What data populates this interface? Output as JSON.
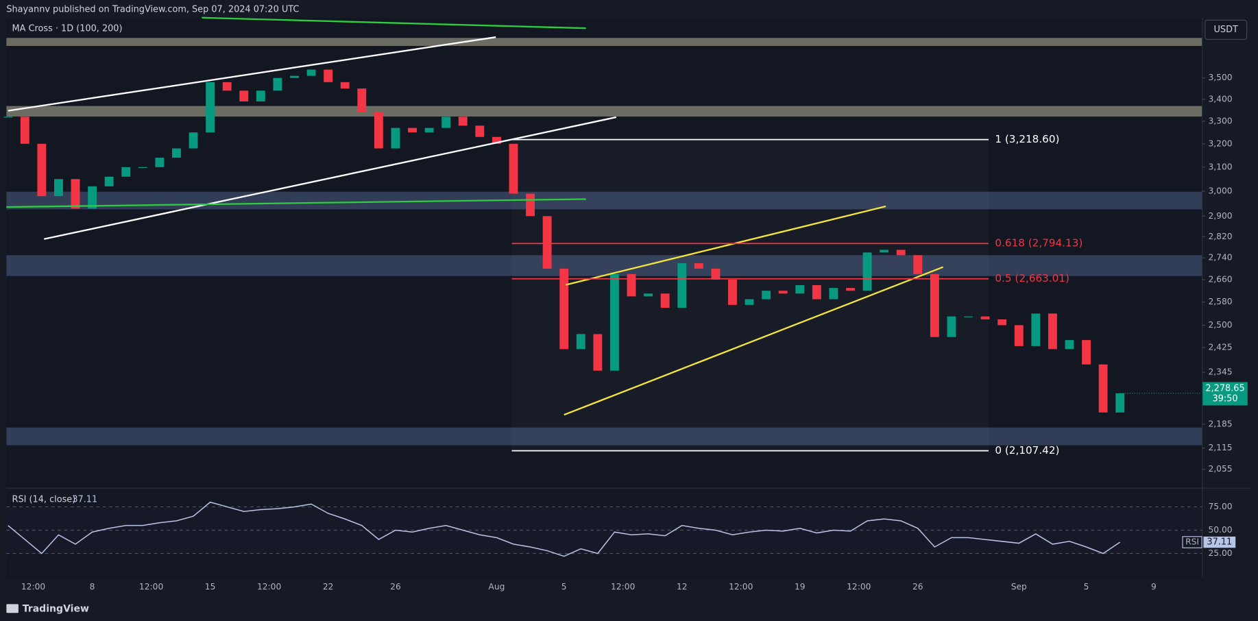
{
  "header": {
    "published": "Shayannv published on TradingView.com, Sep 07, 2024 07:20 UTC",
    "brand": "TradingView"
  },
  "chart_data": [
    {
      "type": "candlestick",
      "indicator": "MA Cross · 1D (100, 200)",
      "currency": "USDT",
      "values": [
        3320,
        3200,
        2980,
        3050,
        2930,
        3020,
        3060,
        3100,
        3100,
        3140,
        3180,
        3250,
        3480,
        3440,
        3390,
        3440,
        3500,
        3510,
        3540,
        3480,
        3450,
        3340,
        3180,
        3270,
        3250,
        3270,
        3320,
        3280,
        3230,
        3200,
        2990,
        2900,
        2700,
        2420,
        2470,
        2350,
        2680,
        2600,
        2610,
        2560,
        2720,
        2700,
        2660,
        2570,
        2590,
        2620,
        2610,
        2640,
        2590,
        2630,
        2620,
        2760,
        2770,
        2750,
        2680,
        2460,
        2530,
        2530,
        2520,
        2500,
        2430,
        2540,
        2420,
        2450,
        2370,
        2220,
        2278.65
      ],
      "color_up": "#089981",
      "color_down": "#f23645",
      "last_price_label": "2,278.65",
      "countdown": "39:50",
      "log_scale": true,
      "xlim": [
        0,
        70
      ],
      "ylim": [
        2006,
        3799
      ],
      "xticks": [
        {
          "value": 1.5,
          "label": "12:00"
        },
        {
          "value": 5,
          "label": "8"
        },
        {
          "value": 8.5,
          "label": "12:00"
        },
        {
          "value": 12,
          "label": "15"
        },
        {
          "value": 15.5,
          "label": "12:00"
        },
        {
          "value": 19,
          "label": "22"
        },
        {
          "value": 23,
          "label": "26"
        },
        {
          "value": 29,
          "label": "Aug"
        },
        {
          "value": 33,
          "label": "5"
        },
        {
          "value": 36.5,
          "label": "12:00"
        },
        {
          "value": 40,
          "label": "12"
        },
        {
          "value": 43.5,
          "label": "12:00"
        },
        {
          "value": 47,
          "label": "19"
        },
        {
          "value": 50.5,
          "label": "12:00"
        },
        {
          "value": 54,
          "label": "26"
        },
        {
          "value": 60,
          "label": "Sep"
        },
        {
          "value": 64,
          "label": "5"
        },
        {
          "value": 68,
          "label": "9"
        }
      ],
      "yticks": [
        {
          "value": 3500,
          "label": "3,500"
        },
        {
          "value": 3400,
          "label": "3,400"
        },
        {
          "value": 3300,
          "label": "3,300"
        },
        {
          "value": 3200,
          "label": "3,200"
        },
        {
          "value": 3100,
          "label": "3,100"
        },
        {
          "value": 3000,
          "label": "3,000"
        },
        {
          "value": 2900,
          "label": "2,900"
        },
        {
          "value": 2820,
          "label": "2,820"
        },
        {
          "value": 2740,
          "label": "2,740"
        },
        {
          "value": 2660,
          "label": "2,660"
        },
        {
          "value": 2580,
          "label": "2,580"
        },
        {
          "value": 2500,
          "label": "2,500"
        },
        {
          "value": 2425,
          "label": "2,425"
        },
        {
          "value": 2345,
          "label": "2,345"
        },
        {
          "value": 2185,
          "label": "2,185"
        },
        {
          "value": 2115,
          "label": "2,115"
        },
        {
          "value": 2055,
          "label": "2,055"
        }
      ],
      "zones": [
        {
          "low": 3656,
          "high": 3696,
          "color": "#8a8a78"
        },
        {
          "low": 3321,
          "high": 3369,
          "color": "#8a8a78"
        },
        {
          "low": 2927,
          "high": 2998,
          "color": "#3d4b6b"
        },
        {
          "low": 2673,
          "high": 2750,
          "color": "#3d4b6b"
        },
        {
          "low": 2123,
          "high": 2175,
          "color": "#3d4b6b"
        }
      ],
      "lines": [
        {
          "points": [
            [
              0,
              3347
            ],
            [
              28.95,
              3700
            ]
          ],
          "color": "#ffffff"
        },
        {
          "points": [
            [
              2.14,
              2811
            ],
            [
              36.1,
              3318
            ]
          ],
          "color": "#ffffff"
        },
        {
          "points": [
            [
              11.5,
              3799
            ],
            [
              34.3,
              3745
            ]
          ],
          "color": "#2ecc40"
        },
        {
          "points": [
            [
              -0.1,
              2936
            ],
            [
              34.3,
              2968
            ]
          ],
          "color": "#2ecc40"
        },
        {
          "points": [
            [
              33.1,
              2641
            ],
            [
              52.1,
              2939
            ]
          ],
          "color": "#f5e43b"
        },
        {
          "points": [
            [
              33.0,
              2213
            ],
            [
              55.5,
              2706
            ]
          ],
          "color": "#f5e43b"
        }
      ],
      "fib_range": [
        29.9,
        58.2
      ],
      "fib": [
        {
          "label": "1 (3,218.60)",
          "value": 3218.6,
          "color": "#ffffff"
        },
        {
          "label": "0.618 (2,794.13)",
          "value": 2794.13,
          "color": "#f23645"
        },
        {
          "label": "0.5 (2,663.01)",
          "value": 2663.01,
          "color": "#f23645"
        },
        {
          "label": "0 (2,107.42)",
          "value": 2107.42,
          "color": "#ffffff"
        }
      ]
    },
    {
      "type": "line",
      "title": "RSI (14, close)",
      "last_value_label": "37.11",
      "series": [
        {
          "name": "RSI",
          "color": "#b8c4e8",
          "values": [
            55,
            40,
            25,
            45,
            35,
            48,
            52,
            55,
            55,
            58,
            60,
            65,
            80,
            75,
            70,
            72,
            73,
            75,
            78,
            68,
            62,
            55,
            40,
            50,
            48,
            52,
            55,
            50,
            45,
            42,
            35,
            32,
            28,
            22,
            30,
            25,
            48,
            45,
            46,
            44,
            55,
            52,
            50,
            45,
            48,
            50,
            49,
            52,
            47,
            50,
            49,
            60,
            62,
            60,
            52,
            32,
            42,
            42,
            40,
            38,
            36,
            46,
            35,
            38,
            32,
            25,
            37.11
          ]
        }
      ],
      "xlim": [
        0,
        70
      ],
      "ylim": [
        0,
        92
      ],
      "yticks": [
        {
          "value": 75,
          "label": "75.00"
        },
        {
          "value": 50,
          "label": "50.00"
        },
        {
          "value": 25,
          "label": "25.00"
        }
      ]
    }
  ]
}
